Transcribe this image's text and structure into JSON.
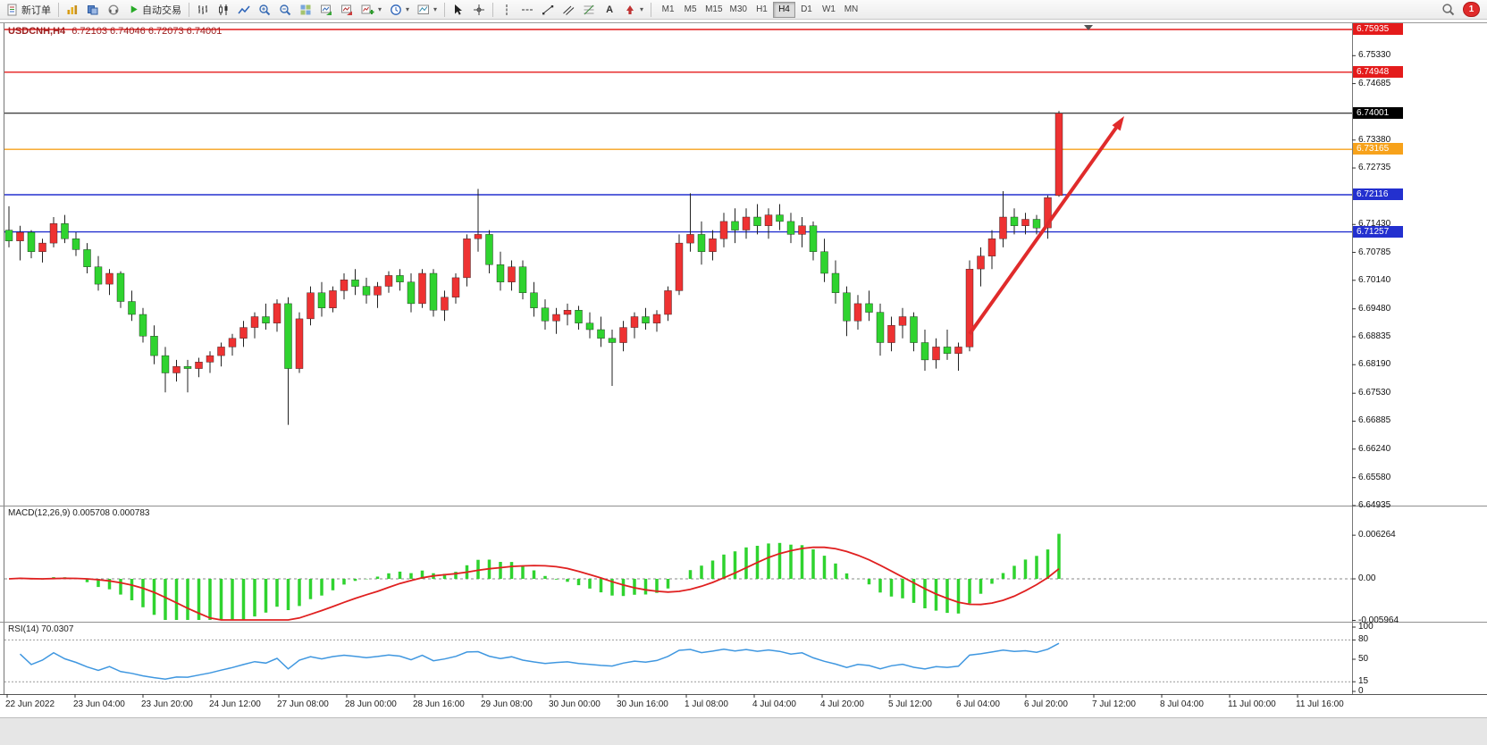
{
  "toolbar": {
    "new_order_label": "新订单",
    "autotrade_label": "自动交易",
    "timeframes": [
      "M1",
      "M5",
      "M15",
      "M30",
      "H1",
      "H4",
      "D1",
      "W1",
      "MN"
    ],
    "active_timeframe": "H4",
    "notification_count": "1"
  },
  "chart_header": {
    "symbol_period": "USDCNH,H4",
    "ohlc": "6.72103 6.74046 6.72073 6.74001"
  },
  "indicator_labels": {
    "macd": "MACD(12,26,9) 0.005708 0.000783",
    "rsi": "RSI(14) 70.0307"
  },
  "price_axis_ticks": [
    "6.75330",
    "6.74685",
    "6.73380",
    "6.72735",
    "6.71430",
    "6.70785",
    "6.70140",
    "6.69480",
    "6.68835",
    "6.68190",
    "6.67530",
    "6.66885",
    "6.66240",
    "6.65580",
    "6.64935"
  ],
  "macd_axis_labels": [
    "0.006264",
    "0.00",
    "-0.005964"
  ],
  "rsi_axis_labels": [
    "100",
    "80",
    "50",
    "15",
    "0"
  ],
  "time_axis_labels": [
    "22 Jun 2022",
    "23 Jun 04:00",
    "23 Jun 20:00",
    "24 Jun 12:00",
    "27 Jun 08:00",
    "28 Jun 00:00",
    "28 Jun 16:00",
    "29 Jun 08:00",
    "30 Jun 00:00",
    "30 Jun 16:00",
    "1 Jul 08:00",
    "4 Jul 04:00",
    "4 Jul 20:00",
    "5 Jul 12:00",
    "6 Jul 04:00",
    "6 Jul 20:00",
    "7 Jul 12:00",
    "8 Jul 04:00",
    "11 Jul 00:00",
    "11 Jul 16:00"
  ],
  "chart_data": {
    "type": "candlestick",
    "symbol": "USDCNH",
    "period": "H4",
    "ohlc_current": {
      "open": 6.72103,
      "high": 6.74046,
      "low": 6.72073,
      "close": 6.74001
    },
    "bull_color": "#ee3232",
    "bear_color": "#2fd32f",
    "wick_color": "#222222",
    "candles": [
      [
        6.713,
        6.7185,
        6.709,
        6.7105
      ],
      [
        6.7105,
        6.714,
        6.706,
        6.7125
      ],
      [
        6.7125,
        6.713,
        6.7065,
        6.708
      ],
      [
        6.708,
        6.711,
        6.7055,
        6.71
      ],
      [
        6.71,
        6.716,
        6.709,
        6.7145
      ],
      [
        6.7145,
        6.7165,
        6.71,
        6.711
      ],
      [
        6.711,
        6.7125,
        6.707,
        6.7085
      ],
      [
        6.7085,
        6.71,
        6.703,
        6.7045
      ],
      [
        6.7045,
        6.707,
        6.699,
        6.7005
      ],
      [
        6.7005,
        6.704,
        6.698,
        6.703
      ],
      [
        6.703,
        6.7035,
        6.695,
        6.6965
      ],
      [
        6.6965,
        6.699,
        6.692,
        6.6935
      ],
      [
        6.6935,
        6.695,
        6.687,
        6.6885
      ],
      [
        6.6885,
        6.691,
        6.682,
        6.684
      ],
      [
        6.684,
        6.686,
        6.6755,
        6.68
      ],
      [
        6.68,
        6.683,
        6.678,
        6.6815
      ],
      [
        6.6815,
        6.683,
        6.6755,
        6.681
      ],
      [
        6.681,
        6.6835,
        6.679,
        6.6825
      ],
      [
        6.6825,
        6.685,
        6.68,
        6.684
      ],
      [
        6.684,
        6.687,
        6.6815,
        6.686
      ],
      [
        6.686,
        6.689,
        6.684,
        6.688
      ],
      [
        6.688,
        6.692,
        6.686,
        6.6905
      ],
      [
        6.6905,
        6.694,
        6.688,
        6.693
      ],
      [
        6.693,
        6.696,
        6.69,
        6.6915
      ],
      [
        6.6915,
        6.697,
        6.6895,
        6.696
      ],
      [
        6.696,
        6.6975,
        6.668,
        6.681
      ],
      [
        6.681,
        6.694,
        6.68,
        6.6925
      ],
      [
        6.6925,
        6.7,
        6.691,
        6.6985
      ],
      [
        6.6985,
        6.701,
        6.693,
        6.695
      ],
      [
        6.695,
        6.7,
        6.694,
        6.699
      ],
      [
        6.699,
        6.703,
        6.697,
        6.7015
      ],
      [
        6.7015,
        6.704,
        6.698,
        6.7
      ],
      [
        6.7,
        6.702,
        6.696,
        6.698
      ],
      [
        6.698,
        6.701,
        6.695,
        6.7
      ],
      [
        6.7,
        6.7035,
        6.6985,
        6.7025
      ],
      [
        6.7025,
        6.704,
        6.699,
        6.701
      ],
      [
        6.701,
        6.703,
        6.694,
        6.696
      ],
      [
        6.696,
        6.704,
        6.695,
        6.703
      ],
      [
        6.703,
        6.704,
        6.693,
        6.6945
      ],
      [
        6.6945,
        6.699,
        6.692,
        6.6975
      ],
      [
        6.6975,
        6.703,
        6.696,
        6.702
      ],
      [
        6.702,
        6.712,
        6.7,
        6.711
      ],
      [
        6.711,
        6.7225,
        6.708,
        6.712
      ],
      [
        6.712,
        6.713,
        6.703,
        6.705
      ],
      [
        6.705,
        6.708,
        6.699,
        6.701
      ],
      [
        6.701,
        6.706,
        6.699,
        6.7045
      ],
      [
        6.7045,
        6.706,
        6.697,
        6.6985
      ],
      [
        6.6985,
        6.701,
        6.693,
        6.695
      ],
      [
        6.695,
        6.697,
        6.69,
        6.692
      ],
      [
        6.692,
        6.695,
        6.689,
        6.6935
      ],
      [
        6.6935,
        6.696,
        6.691,
        6.6945
      ],
      [
        6.6945,
        6.6955,
        6.69,
        6.6915
      ],
      [
        6.6915,
        6.694,
        6.688,
        6.69
      ],
      [
        6.69,
        6.693,
        6.686,
        6.688
      ],
      [
        6.688,
        6.69,
        6.677,
        6.687
      ],
      [
        6.687,
        6.692,
        6.685,
        6.6905
      ],
      [
        6.6905,
        6.694,
        6.688,
        6.693
      ],
      [
        6.693,
        6.695,
        6.69,
        6.6915
      ],
      [
        6.6915,
        6.6945,
        6.6895,
        6.6935
      ],
      [
        6.6935,
        6.7,
        6.692,
        6.699
      ],
      [
        6.699,
        6.712,
        6.698,
        6.71
      ],
      [
        6.71,
        6.7215,
        6.708,
        6.712
      ],
      [
        6.712,
        6.715,
        6.705,
        6.708
      ],
      [
        6.708,
        6.713,
        6.706,
        6.711
      ],
      [
        6.711,
        6.717,
        6.709,
        6.715
      ],
      [
        6.715,
        6.718,
        6.71,
        6.713
      ],
      [
        6.713,
        6.718,
        6.711,
        6.716
      ],
      [
        6.716,
        6.719,
        6.712,
        6.714
      ],
      [
        6.714,
        6.718,
        6.711,
        6.7165
      ],
      [
        6.7165,
        6.719,
        6.713,
        6.715
      ],
      [
        6.715,
        6.717,
        6.71,
        6.712
      ],
      [
        6.712,
        6.716,
        6.709,
        6.714
      ],
      [
        6.714,
        6.715,
        6.706,
        6.708
      ],
      [
        6.708,
        6.711,
        6.701,
        6.703
      ],
      [
        6.703,
        6.706,
        6.696,
        6.6985
      ],
      [
        6.6985,
        6.7,
        6.6885,
        6.692
      ],
      [
        6.692,
        6.698,
        6.69,
        6.696
      ],
      [
        6.696,
        6.699,
        6.692,
        6.694
      ],
      [
        6.694,
        6.696,
        6.684,
        6.687
      ],
      [
        6.687,
        6.693,
        6.685,
        6.691
      ],
      [
        6.691,
        6.695,
        6.688,
        6.693
      ],
      [
        6.693,
        6.694,
        6.685,
        6.687
      ],
      [
        6.687,
        6.69,
        6.6805,
        6.683
      ],
      [
        6.683,
        6.688,
        6.681,
        6.686
      ],
      [
        6.686,
        6.69,
        6.683,
        6.6845
      ],
      [
        6.6845,
        6.687,
        6.6805,
        6.686
      ],
      [
        6.686,
        6.706,
        6.685,
        6.704
      ],
      [
        6.704,
        6.709,
        6.7,
        6.707
      ],
      [
        6.707,
        6.713,
        6.704,
        6.711
      ],
      [
        6.711,
        6.722,
        6.709,
        6.716
      ],
      [
        6.716,
        6.718,
        6.712,
        6.714
      ],
      [
        6.714,
        6.717,
        6.712,
        6.7155
      ],
      [
        6.7155,
        6.7165,
        6.712,
        6.7135
      ],
      [
        6.7135,
        6.721,
        6.711,
        6.7205
      ],
      [
        6.721,
        6.7405,
        6.7207,
        6.74
      ]
    ],
    "levels": [
      {
        "price": 6.75935,
        "label": "6.75935",
        "color": "#e41b1b",
        "kind": "resistance"
      },
      {
        "price": 6.74948,
        "label": "6.74948",
        "color": "#e41b1b",
        "kind": "resistance"
      },
      {
        "price": 6.74001,
        "label": "6.74001",
        "color": "#000000",
        "kind": "current-price"
      },
      {
        "price": 6.73165,
        "label": "6.73165",
        "color": "#f7a21b",
        "kind": "resistance"
      },
      {
        "price": 6.72116,
        "label": "6.72116",
        "color": "#2330cf",
        "kind": "support"
      },
      {
        "price": 6.71257,
        "label": "6.71257",
        "color": "#2330cf",
        "kind": "support"
      }
    ],
    "macd": {
      "fast": 12,
      "slow": 26,
      "signal": 9,
      "value": 0.005708,
      "signal_value": 0.000783,
      "histogram_color": "#2fd32f",
      "line_color": "#e02020"
    },
    "rsi": {
      "period": 14,
      "value": 70.0307,
      "color": "#3f97e0",
      "levels": [
        80,
        15
      ]
    },
    "trend_arrow": {
      "color": "#e02b2b",
      "from_price": 6.689,
      "to_price": 6.739
    }
  }
}
